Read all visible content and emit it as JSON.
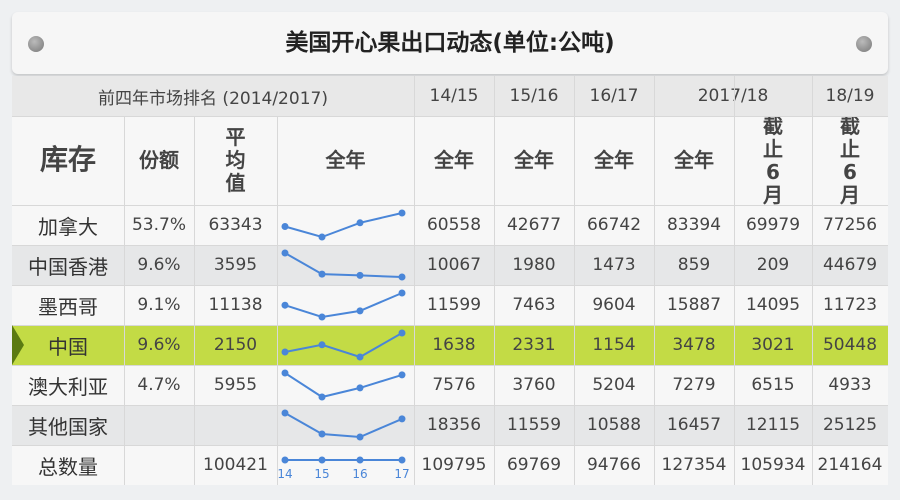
{
  "title": "美国开心果出口动态(单位:公吨)",
  "header": {
    "group_left": "前四年市场排名 (2014/2017)",
    "years": [
      "14/15",
      "15/16",
      "16/17",
      "2017/18",
      "18/19"
    ],
    "stock": "库存",
    "share": "份额",
    "average": "平均值",
    "full_year": "全年",
    "to_june": "截止6月"
  },
  "chart_data": {
    "type": "table",
    "sparkline_type": "line",
    "sparkline_x_labels": [
      "14",
      "15",
      "16",
      "17"
    ],
    "rows": [
      {
        "name": "加拿大",
        "share": "53.7%",
        "avg": "63343",
        "values": [
          60558,
          42677,
          66742,
          83394,
          69979,
          77256
        ],
        "trend": [
          60558,
          42677,
          66742,
          83394
        ]
      },
      {
        "name": "中国香港",
        "share": "9.6%",
        "avg": "3595",
        "values": [
          10067,
          1980,
          1473,
          859,
          209,
          44679
        ],
        "trend": [
          10067,
          1980,
          1473,
          859
        ]
      },
      {
        "name": "墨西哥",
        "share": "9.1%",
        "avg": "11138",
        "values": [
          11599,
          7463,
          9604,
          15887,
          14095,
          11723
        ],
        "trend": [
          11599,
          7463,
          9604,
          15887
        ]
      },
      {
        "name": "中国",
        "share": "9.6%",
        "avg": "2150",
        "values": [
          1638,
          2331,
          1154,
          3478,
          3021,
          50448
        ],
        "trend": [
          1638,
          2331,
          1154,
          3478
        ],
        "highlight": true
      },
      {
        "name": "澳大利亚",
        "share": "4.7%",
        "avg": "5955",
        "values": [
          7576,
          3760,
          5204,
          7279,
          6515,
          4933
        ],
        "trend": [
          7576,
          3760,
          5204,
          7279
        ]
      },
      {
        "name": "其他国家",
        "share": "",
        "avg": "",
        "values": [
          18356,
          11559,
          10588,
          16457,
          12115,
          25125
        ],
        "trend": [
          18356,
          11559,
          10588,
          16457
        ]
      },
      {
        "name": "总数量",
        "share": "",
        "avg": "100421",
        "values": [
          109795,
          69769,
          94766,
          127354,
          105934,
          214164
        ],
        "trend": [
          109795,
          69769,
          94766,
          127354
        ],
        "flat_trend": true
      }
    ]
  },
  "colors": {
    "highlight_row": "#c3db45",
    "highlight_arrow": "#5b7a12",
    "sparkline": "#4a86d8",
    "shaded_row": "#e6e7e8",
    "white_row": "#f7f7f7"
  }
}
